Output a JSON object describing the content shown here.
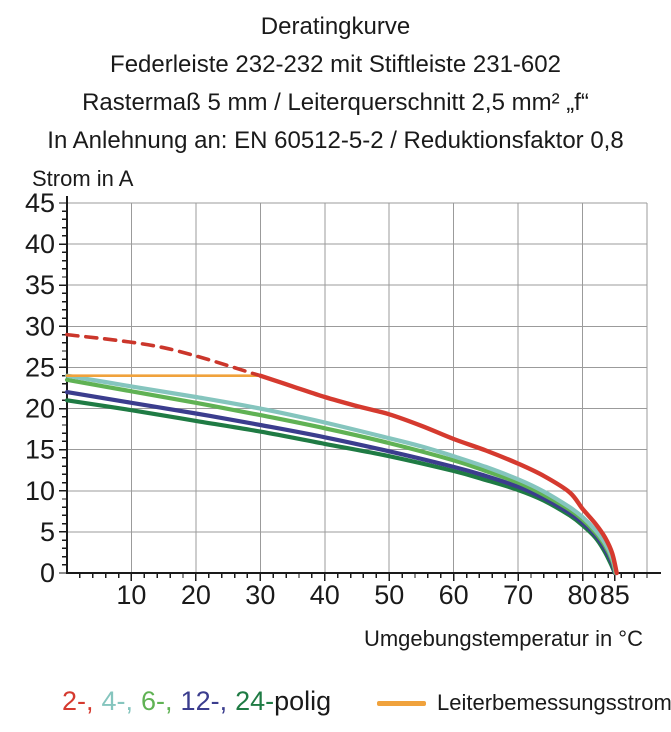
{
  "title": {
    "lines": [
      "Deratingkurve",
      "Federleiste 232-232 mit Stiftleiste 231-602",
      "Rastermaß 5 mm / Leiterquerschnitt 2,5 mm² „f“",
      "In Anlehnung an: EN 60512-5-2 / Reduktionsfaktor 0,8"
    ]
  },
  "chart_data": {
    "type": "line",
    "title": "Deratingkurve",
    "xlabel": "Umgebungstemperatur in °C",
    "ylabel": "Strom in A",
    "xlim": [
      0,
      90
    ],
    "ylim": [
      0,
      45
    ],
    "grid": true,
    "x_ticks": [
      10,
      20,
      30,
      40,
      50,
      60,
      70,
      80,
      85
    ],
    "y_ticks": [
      0,
      5,
      10,
      15,
      20,
      25,
      30,
      35,
      40,
      45
    ],
    "x_minor_step": 2,
    "y_minor_step": 1,
    "colors": {
      "red": "#D53A2F",
      "cyan": "#85C5BE",
      "light_green": "#60B254",
      "navy": "#3B3D8E",
      "dark_green": "#1F7B44",
      "orange": "#F0A23C",
      "grid": "#9B9B9B",
      "axis": "#1A1A1A"
    },
    "series": [
      {
        "name": "24-polig",
        "color": "#1F7B44",
        "width": 4.2,
        "smooth": true,
        "points": [
          [
            0,
            21
          ],
          [
            10,
            19.8
          ],
          [
            20,
            18.5
          ],
          [
            30,
            17.2
          ],
          [
            40,
            15.7
          ],
          [
            50,
            14.2
          ],
          [
            60,
            12.4
          ],
          [
            65,
            11.3
          ],
          [
            70,
            10.1
          ],
          [
            74,
            8.8
          ],
          [
            78,
            7.0
          ],
          [
            80,
            5.8
          ],
          [
            82,
            4.3
          ],
          [
            83.3,
            2.8
          ],
          [
            84.4,
            1.1
          ],
          [
            85,
            0
          ]
        ]
      },
      {
        "name": "12-polig",
        "color": "#3B3D8E",
        "width": 4.2,
        "smooth": true,
        "points": [
          [
            0,
            22
          ],
          [
            10,
            20.7
          ],
          [
            20,
            19.4
          ],
          [
            30,
            18.0
          ],
          [
            40,
            16.5
          ],
          [
            50,
            14.8
          ],
          [
            60,
            12.9
          ],
          [
            65,
            11.8
          ],
          [
            70,
            10.5
          ],
          [
            74,
            9.1
          ],
          [
            78,
            7.3
          ],
          [
            80,
            6.1
          ],
          [
            82,
            4.6
          ],
          [
            83.4,
            3.0
          ],
          [
            84.5,
            1.3
          ],
          [
            85,
            0
          ]
        ]
      },
      {
        "name": "6-polig",
        "color": "#60B254",
        "width": 4.2,
        "smooth": true,
        "points": [
          [
            0,
            23.5
          ],
          [
            10,
            22.1
          ],
          [
            20,
            20.7
          ],
          [
            30,
            19.2
          ],
          [
            40,
            17.6
          ],
          [
            50,
            15.8
          ],
          [
            60,
            13.7
          ],
          [
            65,
            12.4
          ],
          [
            70,
            11.0
          ],
          [
            74,
            9.5
          ],
          [
            78,
            7.7
          ],
          [
            80,
            6.5
          ],
          [
            82,
            4.9
          ],
          [
            83.5,
            3.3
          ],
          [
            84.6,
            1.5
          ],
          [
            85.1,
            0
          ]
        ]
      },
      {
        "name": "4-polig",
        "color": "#85C5BE",
        "width": 4.2,
        "smooth": true,
        "points": [
          [
            0,
            24
          ],
          [
            10,
            22.7
          ],
          [
            20,
            21.4
          ],
          [
            30,
            20.0
          ],
          [
            40,
            18.3
          ],
          [
            50,
            16.4
          ],
          [
            55,
            15.4
          ],
          [
            60,
            14.2
          ],
          [
            65,
            12.9
          ],
          [
            70,
            11.4
          ],
          [
            74,
            9.9
          ],
          [
            78,
            8.0
          ],
          [
            80,
            6.8
          ],
          [
            82,
            5.2
          ],
          [
            83.5,
            3.6
          ],
          [
            84.6,
            1.8
          ],
          [
            85.2,
            0
          ]
        ]
      },
      {
        "name": "Leiterbemessungsstrom",
        "color": "#F0A23C",
        "width": 2.6,
        "smooth": false,
        "points": [
          [
            0,
            24
          ],
          [
            30,
            24
          ]
        ]
      },
      {
        "name": "2-polig (gestrichelt, unterhalb 30 °C)",
        "color": "#CB362B",
        "width": 3.6,
        "smooth": true,
        "dash": "11 8",
        "points": [
          [
            0,
            29
          ],
          [
            15,
            27.4
          ],
          [
            30,
            24
          ]
        ]
      },
      {
        "name": "2-polig",
        "color": "#D53A2F",
        "width": 4.4,
        "smooth": true,
        "points": [
          [
            30,
            24
          ],
          [
            35,
            22.7
          ],
          [
            40,
            21.4
          ],
          [
            45,
            20.3
          ],
          [
            50,
            19.3
          ],
          [
            55,
            17.9
          ],
          [
            60,
            16.3
          ],
          [
            65,
            14.9
          ],
          [
            70,
            13.3
          ],
          [
            74,
            11.8
          ],
          [
            78,
            9.8
          ],
          [
            80,
            7.8
          ],
          [
            82,
            6.0
          ],
          [
            83.5,
            4.3
          ],
          [
            84.6,
            2.4
          ],
          [
            85.3,
            0
          ]
        ]
      }
    ]
  },
  "legend": {
    "pole_items": [
      {
        "label": "2-,",
        "color": "#D53A2F"
      },
      {
        "label": "4-,",
        "color": "#85C5BE"
      },
      {
        "label": "6-,",
        "color": "#60B254"
      },
      {
        "label": "12-,",
        "color": "#3B3D8E"
      },
      {
        "label": "24-",
        "color": "#1F7B44"
      },
      {
        "label": "polig",
        "color": "#1A1A1A"
      }
    ],
    "rated_current_label": "Leiterbemessungsstrom",
    "rated_current_color": "#F0A23C"
  }
}
